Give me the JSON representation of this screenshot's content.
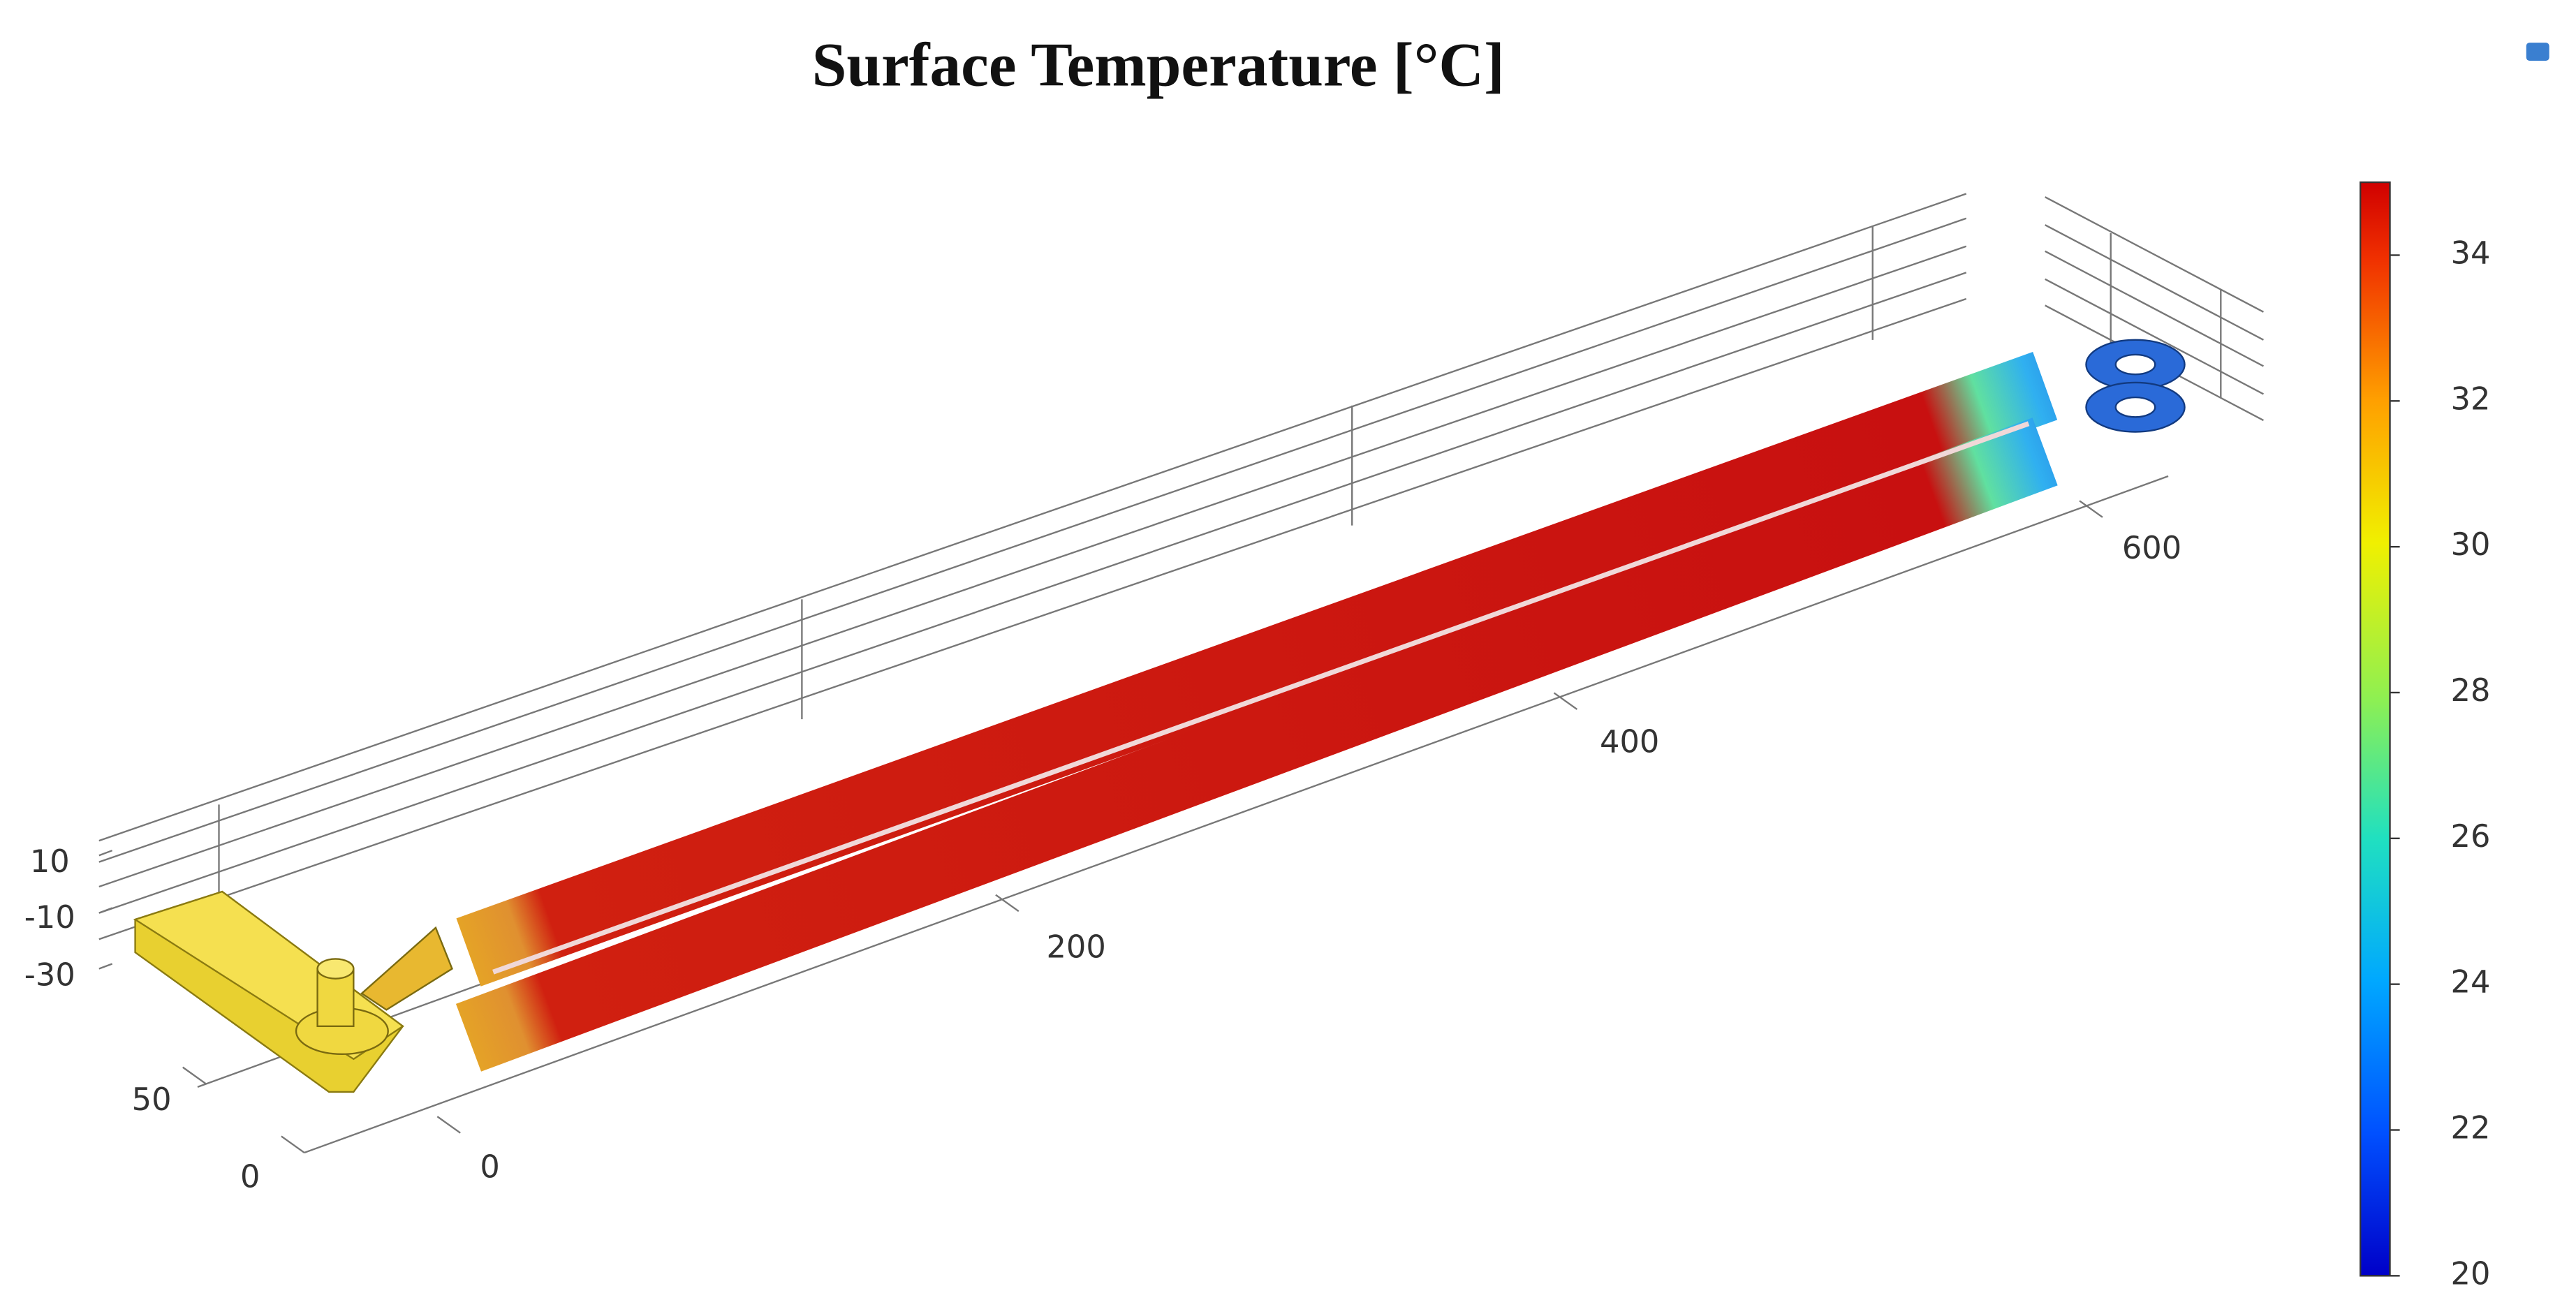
{
  "title": "Surface Temperature [°C]",
  "colorbar": {
    "range": [
      20,
      35
    ],
    "ticks": [
      20,
      22,
      24,
      26,
      28,
      30,
      32,
      34
    ]
  },
  "axes": {
    "x_ticks": [
      0,
      200,
      400,
      600
    ],
    "y_ticks": [
      0,
      50
    ],
    "z_ticks": [
      10,
      -10,
      -30
    ]
  }
}
